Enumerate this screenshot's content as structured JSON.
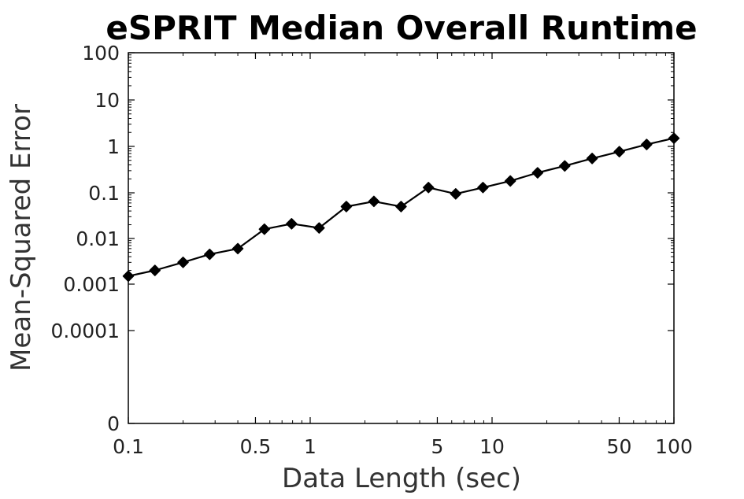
{
  "chart_data": {
    "type": "line",
    "title": "eSPRIT Median Overall Runtime",
    "xlabel": "Data Length (sec)",
    "ylabel": "Mean-Squared Error",
    "xscale": "log",
    "yscale": "log",
    "xlim": [
      0.1,
      100
    ],
    "ylim_label": "0 to 100",
    "grid": false,
    "legend": "none",
    "colors": {
      "line": "#000000",
      "marker": "#000000",
      "axis": "#000000"
    },
    "x_ticks": [
      {
        "value": 0.1,
        "label": "0.1"
      },
      {
        "value": 0.5,
        "label": "0.5"
      },
      {
        "value": 1,
        "label": "1"
      },
      {
        "value": 5,
        "label": "5"
      },
      {
        "value": 10,
        "label": "10"
      },
      {
        "value": 50,
        "label": "50"
      },
      {
        "value": 100,
        "label": "100"
      }
    ],
    "y_ticks": [
      {
        "value": 0,
        "label": "0"
      },
      {
        "value": 0.0001,
        "label": "0.0001"
      },
      {
        "value": 0.001,
        "label": "0.001"
      },
      {
        "value": 0.01,
        "label": "0.01"
      },
      {
        "value": 0.1,
        "label": "0.1"
      },
      {
        "value": 1,
        "label": "1"
      },
      {
        "value": 10,
        "label": "10"
      },
      {
        "value": 100,
        "label": "100"
      }
    ],
    "x": [
      0.1,
      0.14,
      0.2,
      0.28,
      0.4,
      0.56,
      0.79,
      1.12,
      1.58,
      2.24,
      3.16,
      4.47,
      6.31,
      8.91,
      12.6,
      17.8,
      25.1,
      35.5,
      50.1,
      70.8,
      100
    ],
    "y": [
      0.0015,
      0.002,
      0.003,
      0.0045,
      0.006,
      0.016,
      0.021,
      0.017,
      0.05,
      0.065,
      0.05,
      0.13,
      0.095,
      0.13,
      0.18,
      0.27,
      0.38,
      0.55,
      0.77,
      1.1,
      1.5
    ]
  }
}
